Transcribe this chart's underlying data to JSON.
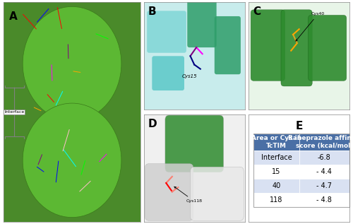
{
  "figure_bg": "#ffffff",
  "panel_labels": [
    "A",
    "B",
    "C",
    "D",
    "E"
  ],
  "table_title": "E",
  "table_header": [
    "Area or Cys in\nTcTIM",
    "Rabeprazole affinity\nscore (kcal/mol)"
  ],
  "table_rows": [
    [
      "Interface",
      "-6.8"
    ],
    [
      "15",
      "- 4.4"
    ],
    [
      "40",
      "- 4.7"
    ],
    [
      "118",
      "- 4.8"
    ]
  ],
  "table_header_bg": "#4a6fa5",
  "table_header_fg": "#ffffff",
  "table_row_bg_odd": "#d9e1f2",
  "table_row_bg_even": "#ffffff",
  "table_text_color": "#000000",
  "border_color": "#000000",
  "panel_label_fontsize": 11,
  "table_fontsize": 7,
  "img_A_bg": "#4a8a2a",
  "img_B_bg": "#a8d8d8",
  "img_C_bg": "#2e7d32",
  "img_D_bg": "#2e7d32"
}
